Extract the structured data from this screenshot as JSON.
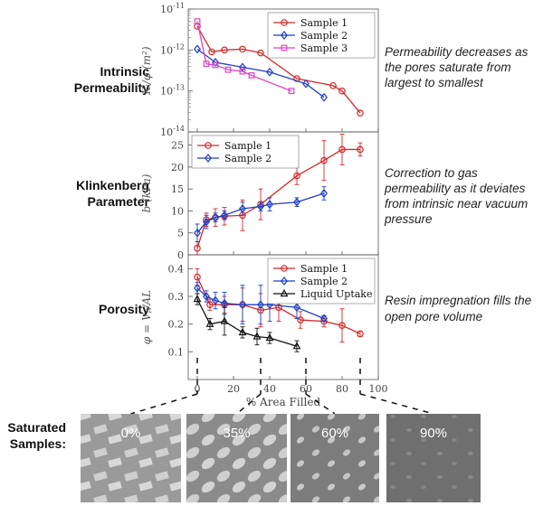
{
  "left_labels": {
    "intrinsic": [
      "Intrinsic",
      "Permeability"
    ],
    "klinkenberg": [
      "Klinkenberg",
      "Parameter"
    ],
    "porosity": [
      "Porosity"
    ],
    "saturated": [
      "Saturated",
      "Samples:"
    ]
  },
  "notes": {
    "permeability": [
      "Permeability decreases as",
      "the pores saturate from",
      "largest  to smallest"
    ],
    "klinkenberg": [
      "Correction to gas",
      "permeability as it deviates",
      "from intrinsic near vacuum",
      "pressure"
    ],
    "porosity": [
      "Resin impregnation fills the",
      "open pore volume"
    ]
  },
  "images": [
    {
      "label": "0%",
      "at_x": 0
    },
    {
      "label": "35%",
      "at_x": 35
    },
    {
      "label": "60%",
      "at_x": 60
    },
    {
      "label": "90%",
      "at_x": 90
    }
  ],
  "colors": {
    "sample1": "#d62728",
    "sample2": "#1f3fc4",
    "sample3": "#e040c8",
    "liquid": "#111111"
  },
  "chart_data": [
    {
      "type": "line",
      "ylabel": "K_i/φ (m^2)",
      "yscale": "log",
      "ylim": [
        1e-14,
        1e-11
      ],
      "xlim": [
        -5,
        100
      ],
      "yticks": [
        "10^-14",
        "10^-13",
        "10^-12",
        "10^-11"
      ],
      "legend_position": "top-right",
      "series": [
        {
          "name": "Sample 1",
          "marker": "circle",
          "color": "#d62728",
          "x": [
            0,
            8,
            15,
            25,
            35,
            55,
            75,
            80,
            90
          ],
          "y": [
            3.8e-12,
            9e-13,
            1e-12,
            1.05e-12,
            8.5e-13,
            2e-13,
            1.35e-13,
            1e-13,
            2.9e-14
          ]
        },
        {
          "name": "Sample 2",
          "marker": "diamond",
          "color": "#1f3fc4",
          "x": [
            0,
            10,
            25,
            40,
            60,
            70
          ],
          "y": [
            1.05e-12,
            5e-13,
            3.8e-13,
            2.9e-13,
            1.5e-13,
            7e-14
          ]
        },
        {
          "name": "Sample 3",
          "marker": "square",
          "color": "#e040c8",
          "x": [
            0,
            5,
            10,
            17,
            25,
            30,
            52
          ],
          "y": [
            5e-12,
            4.6e-13,
            4.3e-13,
            3.3e-13,
            3e-13,
            2.4e-13,
            1e-13
          ]
        }
      ]
    },
    {
      "type": "line",
      "ylabel": "b (kPa)",
      "ylim": [
        0,
        28
      ],
      "xlim": [
        -5,
        100
      ],
      "yticks": [
        0,
        5,
        10,
        15,
        20,
        25
      ],
      "legend_position": "top-left",
      "series": [
        {
          "name": "Sample 1",
          "marker": "circle",
          "color": "#d62728",
          "x": [
            0,
            5,
            10,
            15,
            25,
            35,
            55,
            70,
            80,
            90
          ],
          "y": [
            1.5,
            8,
            8.5,
            8.8,
            9,
            11.5,
            18,
            21.5,
            24,
            24
          ],
          "err": [
            1.5,
            1.5,
            2,
            2,
            3.5,
            3.5,
            2,
            4.5,
            3.5,
            1.5
          ]
        },
        {
          "name": "Sample 2",
          "marker": "diamond",
          "color": "#1f3fc4",
          "x": [
            0,
            5,
            10,
            15,
            25,
            35,
            40,
            55,
            70
          ],
          "y": [
            5,
            7.5,
            8.5,
            9,
            10.5,
            11,
            11.5,
            12,
            14
          ],
          "err": [
            2,
            1.5,
            1,
            1,
            1.5,
            1,
            1.5,
            1,
            1.5
          ]
        }
      ]
    },
    {
      "type": "line",
      "ylabel": "φ = V_p/AL",
      "xlabel": "% Area Filled",
      "ylim": [
        0,
        0.45
      ],
      "xlim": [
        -5,
        100
      ],
      "xticks": [
        0,
        20,
        40,
        60,
        80,
        100
      ],
      "yticks": [
        0.1,
        0.2,
        0.3,
        0.4
      ],
      "legend_position": "top-right",
      "series": [
        {
          "name": "Sample 1",
          "marker": "circle",
          "color": "#d62728",
          "x": [
            0,
            7,
            15,
            25,
            35,
            45,
            57,
            70,
            80,
            90
          ],
          "y": [
            0.37,
            0.27,
            0.27,
            0.27,
            0.25,
            0.26,
            0.215,
            0.21,
            0.195,
            0.165
          ],
          "err": [
            0.03,
            0.02,
            0.03,
            0.06,
            0.06,
            0.05,
            0.03,
            0.02,
            0.06,
            0.01
          ]
        },
        {
          "name": "Sample 2",
          "marker": "diamond",
          "color": "#1f3fc4",
          "x": [
            0,
            5,
            10,
            15,
            25,
            35,
            40,
            55,
            70
          ],
          "y": [
            0.33,
            0.3,
            0.285,
            0.275,
            0.27,
            0.27,
            0.27,
            0.26,
            0.22
          ],
          "err": [
            0.02,
            0.02,
            0.03,
            0.04,
            0.07,
            0.07,
            0.06,
            0.04,
            0.01
          ]
        },
        {
          "name": "Liquid Uptake",
          "marker": "triangle",
          "color": "#111111",
          "x": [
            0,
            7,
            15,
            25,
            33,
            40,
            55
          ],
          "y": [
            0.29,
            0.2,
            0.21,
            0.17,
            0.155,
            0.15,
            0.12
          ],
          "err": [
            0.02,
            0.02,
            0.05,
            0.02,
            0.03,
            0.02,
            0.02
          ]
        }
      ]
    }
  ]
}
